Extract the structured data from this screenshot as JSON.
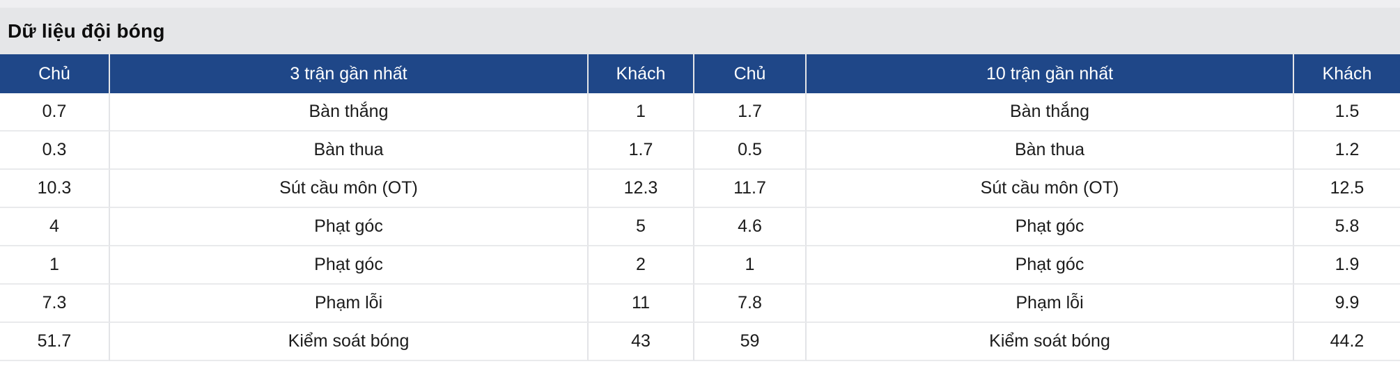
{
  "title": "Dữ liệu đội bóng",
  "colors": {
    "header_bg": "#1f4788",
    "header_text": "#ffffff",
    "title_bar_bg": "#e5e6e8",
    "grid_line": "#e3e4e7",
    "cell_text": "#1b1b1b"
  },
  "chart_data": {
    "type": "table",
    "title": "Dữ liệu đội bóng",
    "headers": [
      "Chủ",
      "3 trận gần nhất",
      "Khách",
      "Chủ",
      "10 trận gần nhất",
      "Khách"
    ],
    "rows": [
      [
        "0.7",
        "Bàn thắng",
        "1",
        "1.7",
        "Bàn thắng",
        "1.5"
      ],
      [
        "0.3",
        "Bàn thua",
        "1.7",
        "0.5",
        "Bàn thua",
        "1.2"
      ],
      [
        "10.3",
        "Sút cầu môn (OT)",
        "12.3",
        "11.7",
        "Sút cầu môn (OT)",
        "12.5"
      ],
      [
        "4",
        "Phạt góc",
        "5",
        "4.6",
        "Phạt góc",
        "5.8"
      ],
      [
        "1",
        "Phạt góc",
        "2",
        "1",
        "Phạt góc",
        "1.9"
      ],
      [
        "7.3",
        "Phạm lỗi",
        "11",
        "7.8",
        "Phạm lỗi",
        "9.9"
      ],
      [
        "51.7",
        "Kiểm soát bóng",
        "43",
        "59",
        "Kiểm soát bóng",
        "44.2"
      ]
    ]
  }
}
